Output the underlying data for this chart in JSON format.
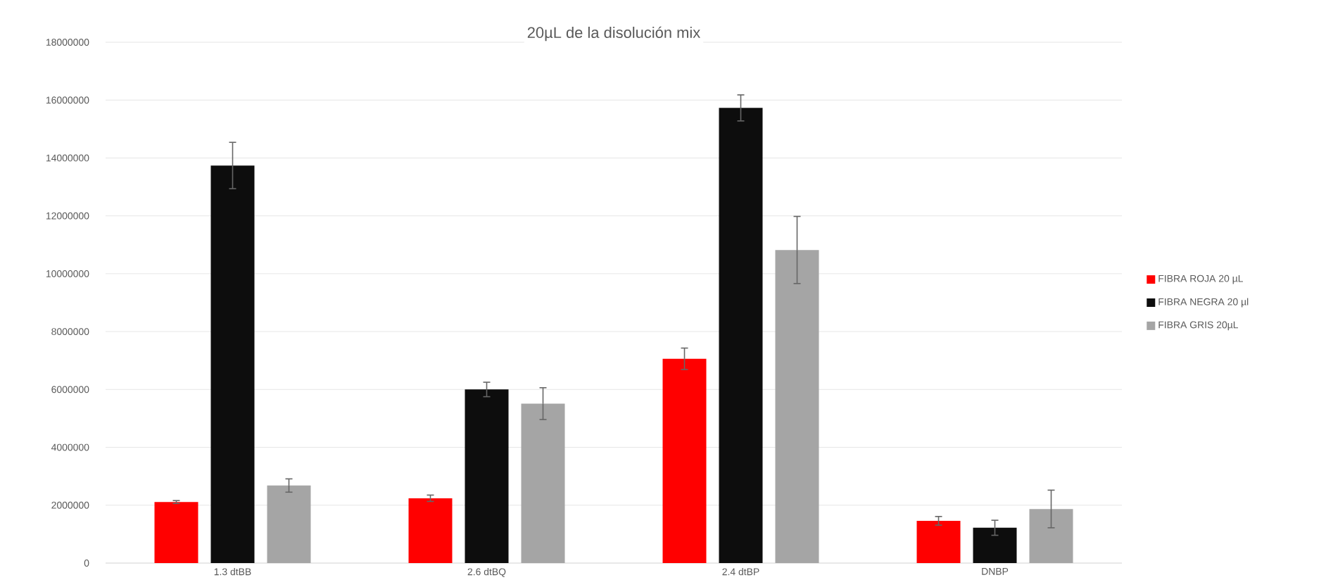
{
  "chart_data": {
    "type": "bar",
    "title": "20µL de la disolución mix",
    "categories": [
      "1.3 dtBB",
      "2.6 dtBQ",
      "2.4 dtBP",
      "DNBP"
    ],
    "series": [
      {
        "name": "FIBRA ROJA 20 µL",
        "color": "#ff0000",
        "values": [
          2110000,
          2240000,
          7060000,
          1460000
        ],
        "errors": [
          50000,
          110000,
          370000,
          150000
        ]
      },
      {
        "name": "FIBRA NEGRA 20 µl",
        "color": "#0d0d0d",
        "values": [
          13740000,
          6000000,
          15730000,
          1220000
        ],
        "errors": [
          800000,
          250000,
          450000,
          260000
        ]
      },
      {
        "name": "FIBRA GRIS 20µL",
        "color": "#a5a5a5",
        "values": [
          2680000,
          5510000,
          10820000,
          1870000
        ],
        "errors": [
          230000,
          550000,
          1160000,
          650000
        ]
      }
    ],
    "ylim": [
      0,
      18000000
    ],
    "yticks": [
      0,
      2000000,
      4000000,
      6000000,
      8000000,
      10000000,
      12000000,
      14000000,
      16000000,
      18000000
    ],
    "grid": "y",
    "legend": "right"
  }
}
